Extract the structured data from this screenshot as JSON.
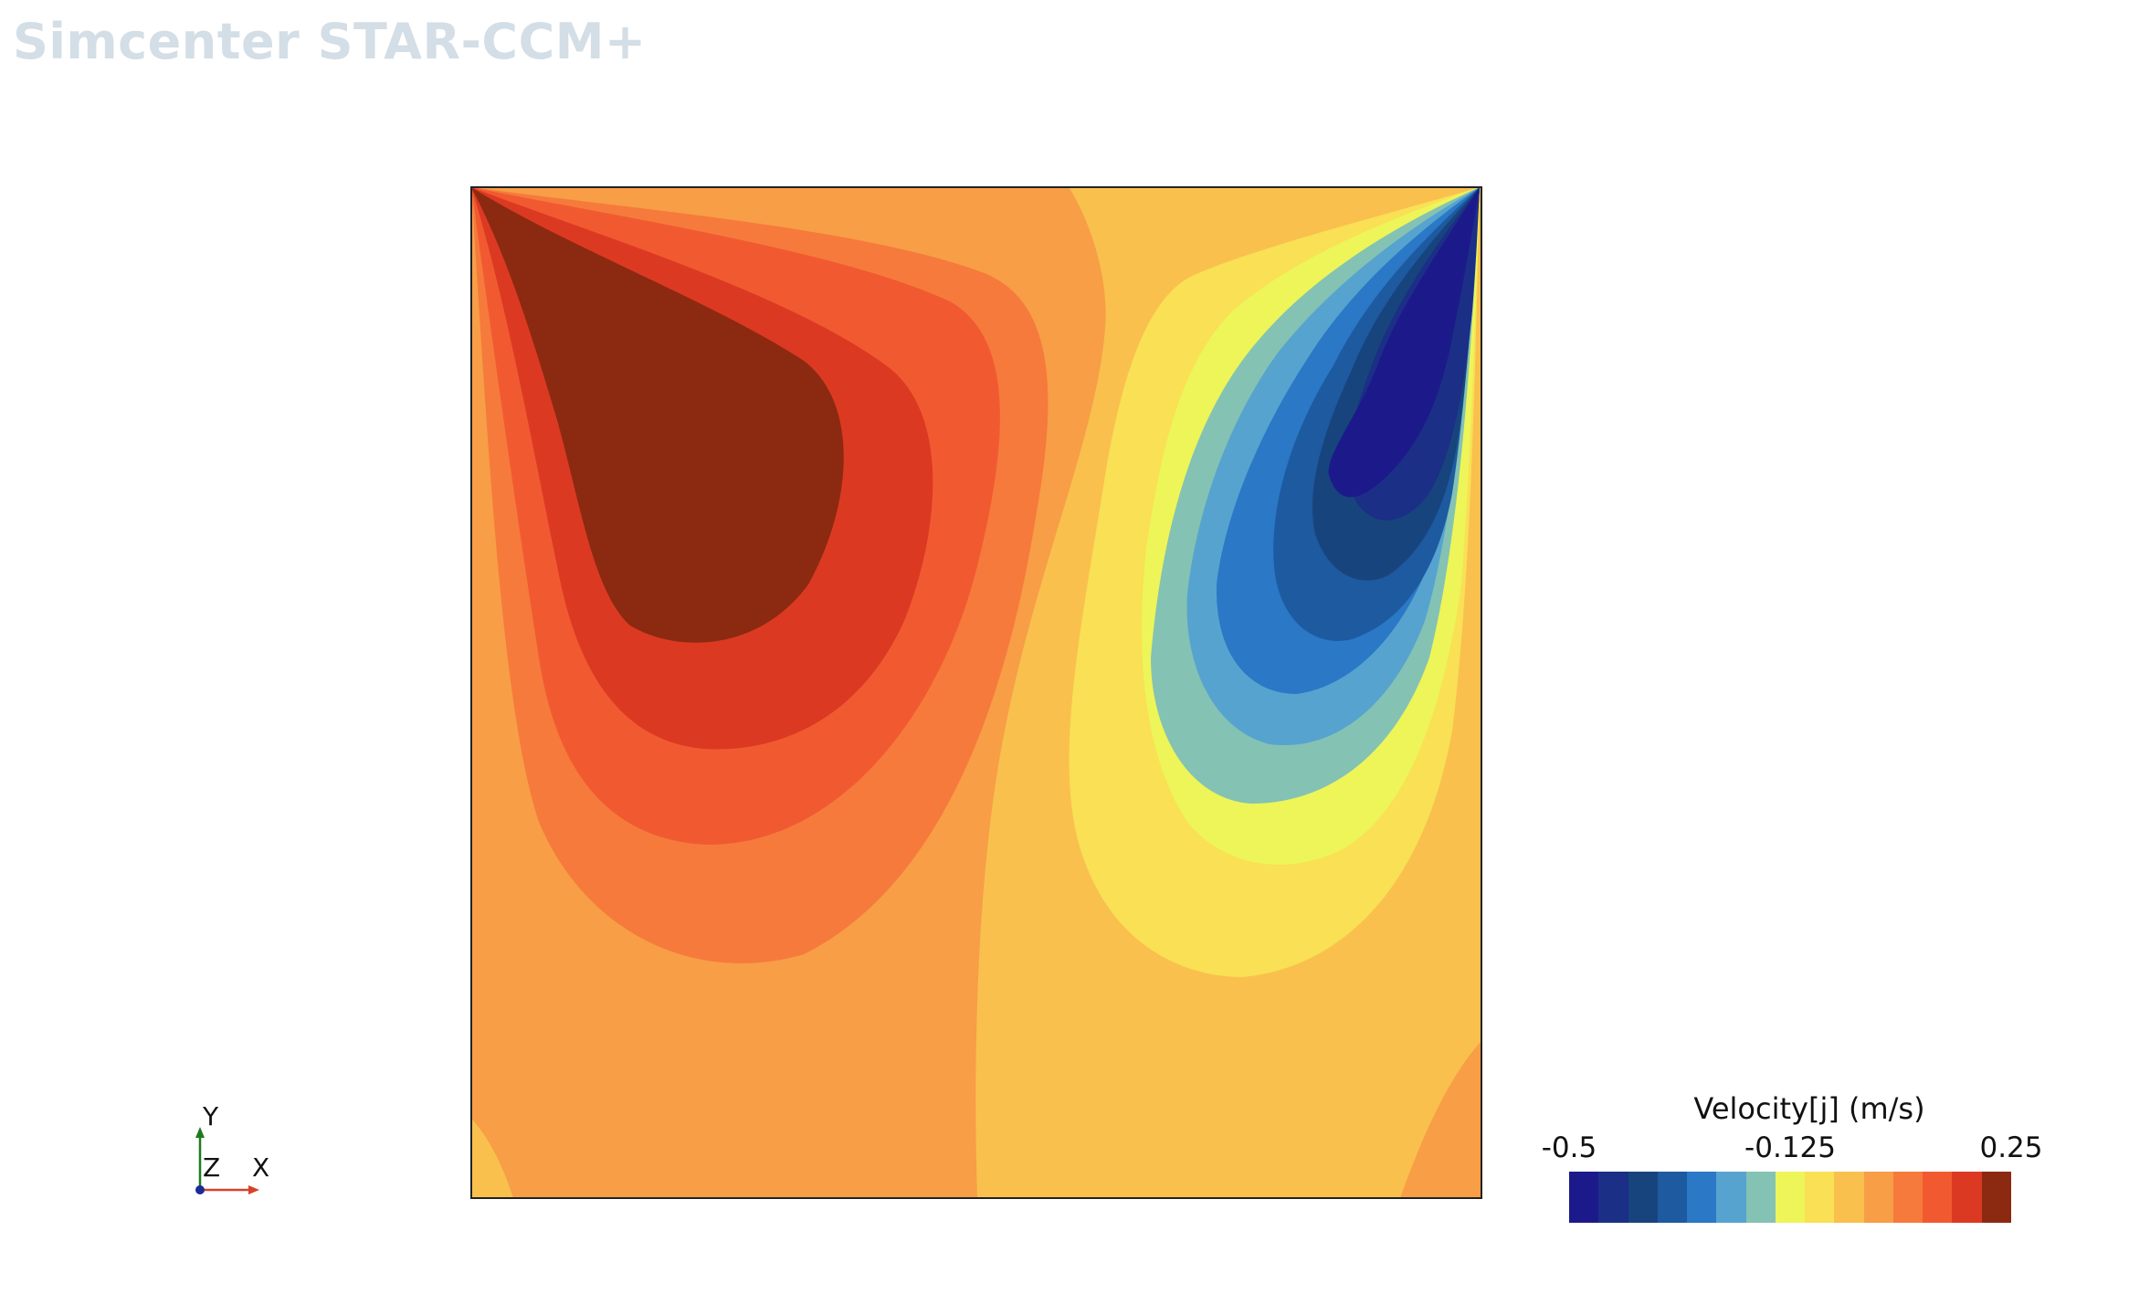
{
  "app": {
    "watermark": "Simcenter STAR-CCM+"
  },
  "scene": {
    "type": "contour-plot"
  },
  "axes": {
    "y_label": "Y",
    "z_label": "Z",
    "x_label": "X"
  },
  "legend": {
    "title": "Velocity[j] (m/s)",
    "min_label": "-0.5",
    "mid_label": "-0.125",
    "max_label": "0.25",
    "levels": 16,
    "colors": [
      "#1c1a8a",
      "#1b2f86",
      "#18447e",
      "#1d5aa0",
      "#2a78c6",
      "#56a3cf",
      "#84c2b4",
      "#edf558",
      "#f9e054",
      "#f9c04e",
      "#f79e46",
      "#f67a3c",
      "#f15a30",
      "#dc3923",
      "#8b2a10"
    ]
  }
}
